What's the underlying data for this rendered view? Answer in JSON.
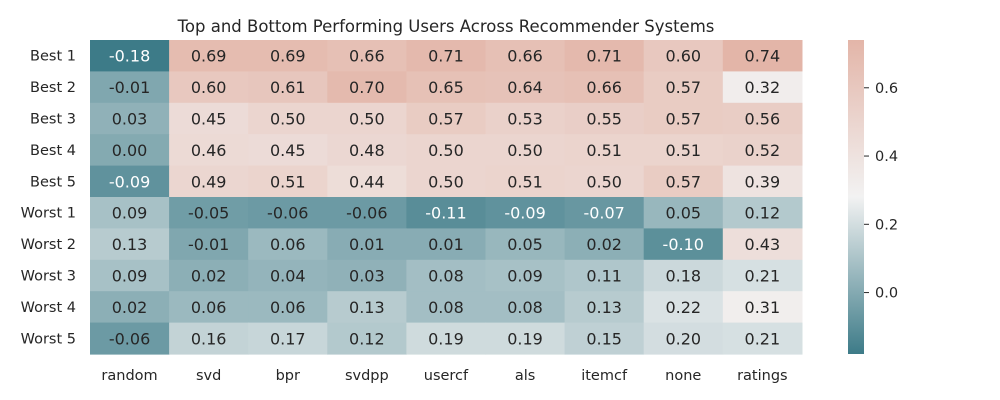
{
  "chart_data": {
    "type": "heatmap",
    "title": "Top and Bottom Performing Users Across Recommender Systems",
    "xlabel": "",
    "ylabel": "",
    "columns": [
      "random",
      "svd",
      "bpr",
      "svdpp",
      "usercf",
      "als",
      "itemcf",
      "none",
      "ratings"
    ],
    "rows": [
      "Best 1",
      "Best 2",
      "Best 3",
      "Best 4",
      "Best 5",
      "Worst 1",
      "Worst 2",
      "Worst 3",
      "Worst 4",
      "Worst 5"
    ],
    "values": [
      [
        -0.18,
        0.69,
        0.69,
        0.66,
        0.71,
        0.66,
        0.71,
        0.6,
        0.74
      ],
      [
        -0.01,
        0.6,
        0.61,
        0.7,
        0.65,
        0.64,
        0.66,
        0.57,
        0.32
      ],
      [
        0.03,
        0.45,
        0.5,
        0.5,
        0.57,
        0.53,
        0.55,
        0.57,
        0.56
      ],
      [
        0.0,
        0.46,
        0.45,
        0.48,
        0.5,
        0.5,
        0.51,
        0.51,
        0.52
      ],
      [
        -0.09,
        0.49,
        0.51,
        0.44,
        0.5,
        0.51,
        0.5,
        0.57,
        0.39
      ],
      [
        0.09,
        -0.05,
        -0.06,
        -0.06,
        -0.11,
        -0.09,
        -0.07,
        0.05,
        0.12
      ],
      [
        0.13,
        -0.01,
        0.06,
        0.01,
        0.01,
        0.05,
        0.02,
        -0.1,
        0.43
      ],
      [
        0.09,
        0.02,
        0.04,
        0.03,
        0.08,
        0.09,
        0.11,
        0.18,
        0.21
      ],
      [
        0.02,
        0.06,
        0.06,
        0.13,
        0.08,
        0.08,
        0.13,
        0.22,
        0.31
      ],
      [
        -0.06,
        0.16,
        0.17,
        0.12,
        0.19,
        0.19,
        0.15,
        0.2,
        0.21
      ]
    ],
    "value_labels": [
      [
        "-0.18",
        "0.69",
        "0.69",
        "0.66",
        "0.71",
        "0.66",
        "0.71",
        "0.60",
        "0.74"
      ],
      [
        "-0.01",
        "0.60",
        "0.61",
        "0.70",
        "0.65",
        "0.64",
        "0.66",
        "0.57",
        "0.32"
      ],
      [
        "0.03",
        "0.45",
        "0.50",
        "0.50",
        "0.57",
        "0.53",
        "0.55",
        "0.57",
        "0.56"
      ],
      [
        "0.00",
        "0.46",
        "0.45",
        "0.48",
        "0.50",
        "0.50",
        "0.51",
        "0.51",
        "0.52"
      ],
      [
        "-0.09",
        "0.49",
        "0.51",
        "0.44",
        "0.50",
        "0.51",
        "0.50",
        "0.57",
        "0.39"
      ],
      [
        "0.09",
        "-0.05",
        "-0.06",
        "-0.06",
        "-0.11",
        "-0.09",
        "-0.07",
        "0.05",
        "0.12"
      ],
      [
        "0.13",
        "-0.01",
        "0.06",
        "0.01",
        "0.01",
        "0.05",
        "0.02",
        "-0.10",
        "0.43"
      ],
      [
        "0.09",
        "0.02",
        "0.04",
        "0.03",
        "0.08",
        "0.09",
        "0.11",
        "0.18",
        "0.21"
      ],
      [
        "0.02",
        "0.06",
        "0.06",
        "0.13",
        "0.08",
        "0.08",
        "0.13",
        "0.22",
        "0.31"
      ],
      [
        "-0.06",
        "0.16",
        "0.17",
        "0.12",
        "0.19",
        "0.19",
        "0.15",
        "0.20",
        "0.21"
      ]
    ],
    "colorbar": {
      "vmin": -0.18,
      "vmax": 0.74,
      "ticks": [
        0.0,
        0.2,
        0.4,
        0.6
      ],
      "tick_labels": [
        "0.0",
        "0.2",
        "0.4",
        "0.6"
      ],
      "colormap": "diverging teal-white-salmon",
      "low_color": "#3d7b88",
      "mid_color": "#f2f2f2",
      "high_color": "#e3b5a8"
    },
    "grid": false,
    "legend": "colorbar right"
  }
}
